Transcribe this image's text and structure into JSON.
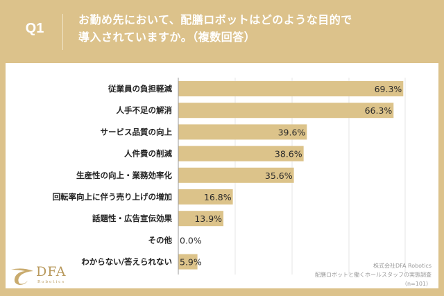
{
  "header": {
    "question_label": "Q1",
    "title_line1": "お勤め先において、配膳ロボットはどのような目的で",
    "title_line2": "導入されていますか。（複数回答）"
  },
  "footer": {
    "company": "株式会社DFA Robotics",
    "survey": "配膳ロボットと働くホールスタッフの実態調査",
    "sample": "（n=101）"
  },
  "logo": {
    "name": "DFA",
    "sub": "Robotics",
    "icon": "dfa-swoosh-icon"
  },
  "colors": {
    "background": "#dcc28b",
    "bar": "#dcc38a",
    "panel": "#ffffff",
    "text": "#222222"
  },
  "chart_data": {
    "type": "bar",
    "orientation": "horizontal",
    "title": "お勤め先において、配膳ロボットはどのような目的で導入されていますか。（複数回答）",
    "xlabel": "",
    "ylabel": "",
    "categories": [
      "従業員の負担軽減",
      "人手不足の解消",
      "サービス品質の向上",
      "人件費の削減",
      "生産性の向上・業務効率化",
      "回転率向上に伴う売り上げの増加",
      "話題性・広告宣伝効果",
      "その他",
      "わからない/答えられない"
    ],
    "values": [
      69.3,
      66.3,
      39.6,
      38.6,
      35.6,
      16.8,
      13.9,
      0.0,
      5.9
    ],
    "value_labels": [
      "69.3%",
      "66.3%",
      "39.6%",
      "38.6%",
      "35.6%",
      "16.8%",
      "13.9%",
      "0.0%",
      "5.9%"
    ],
    "unit": "%",
    "xlim": [
      0,
      80
    ],
    "grid": true,
    "legend": "none"
  }
}
